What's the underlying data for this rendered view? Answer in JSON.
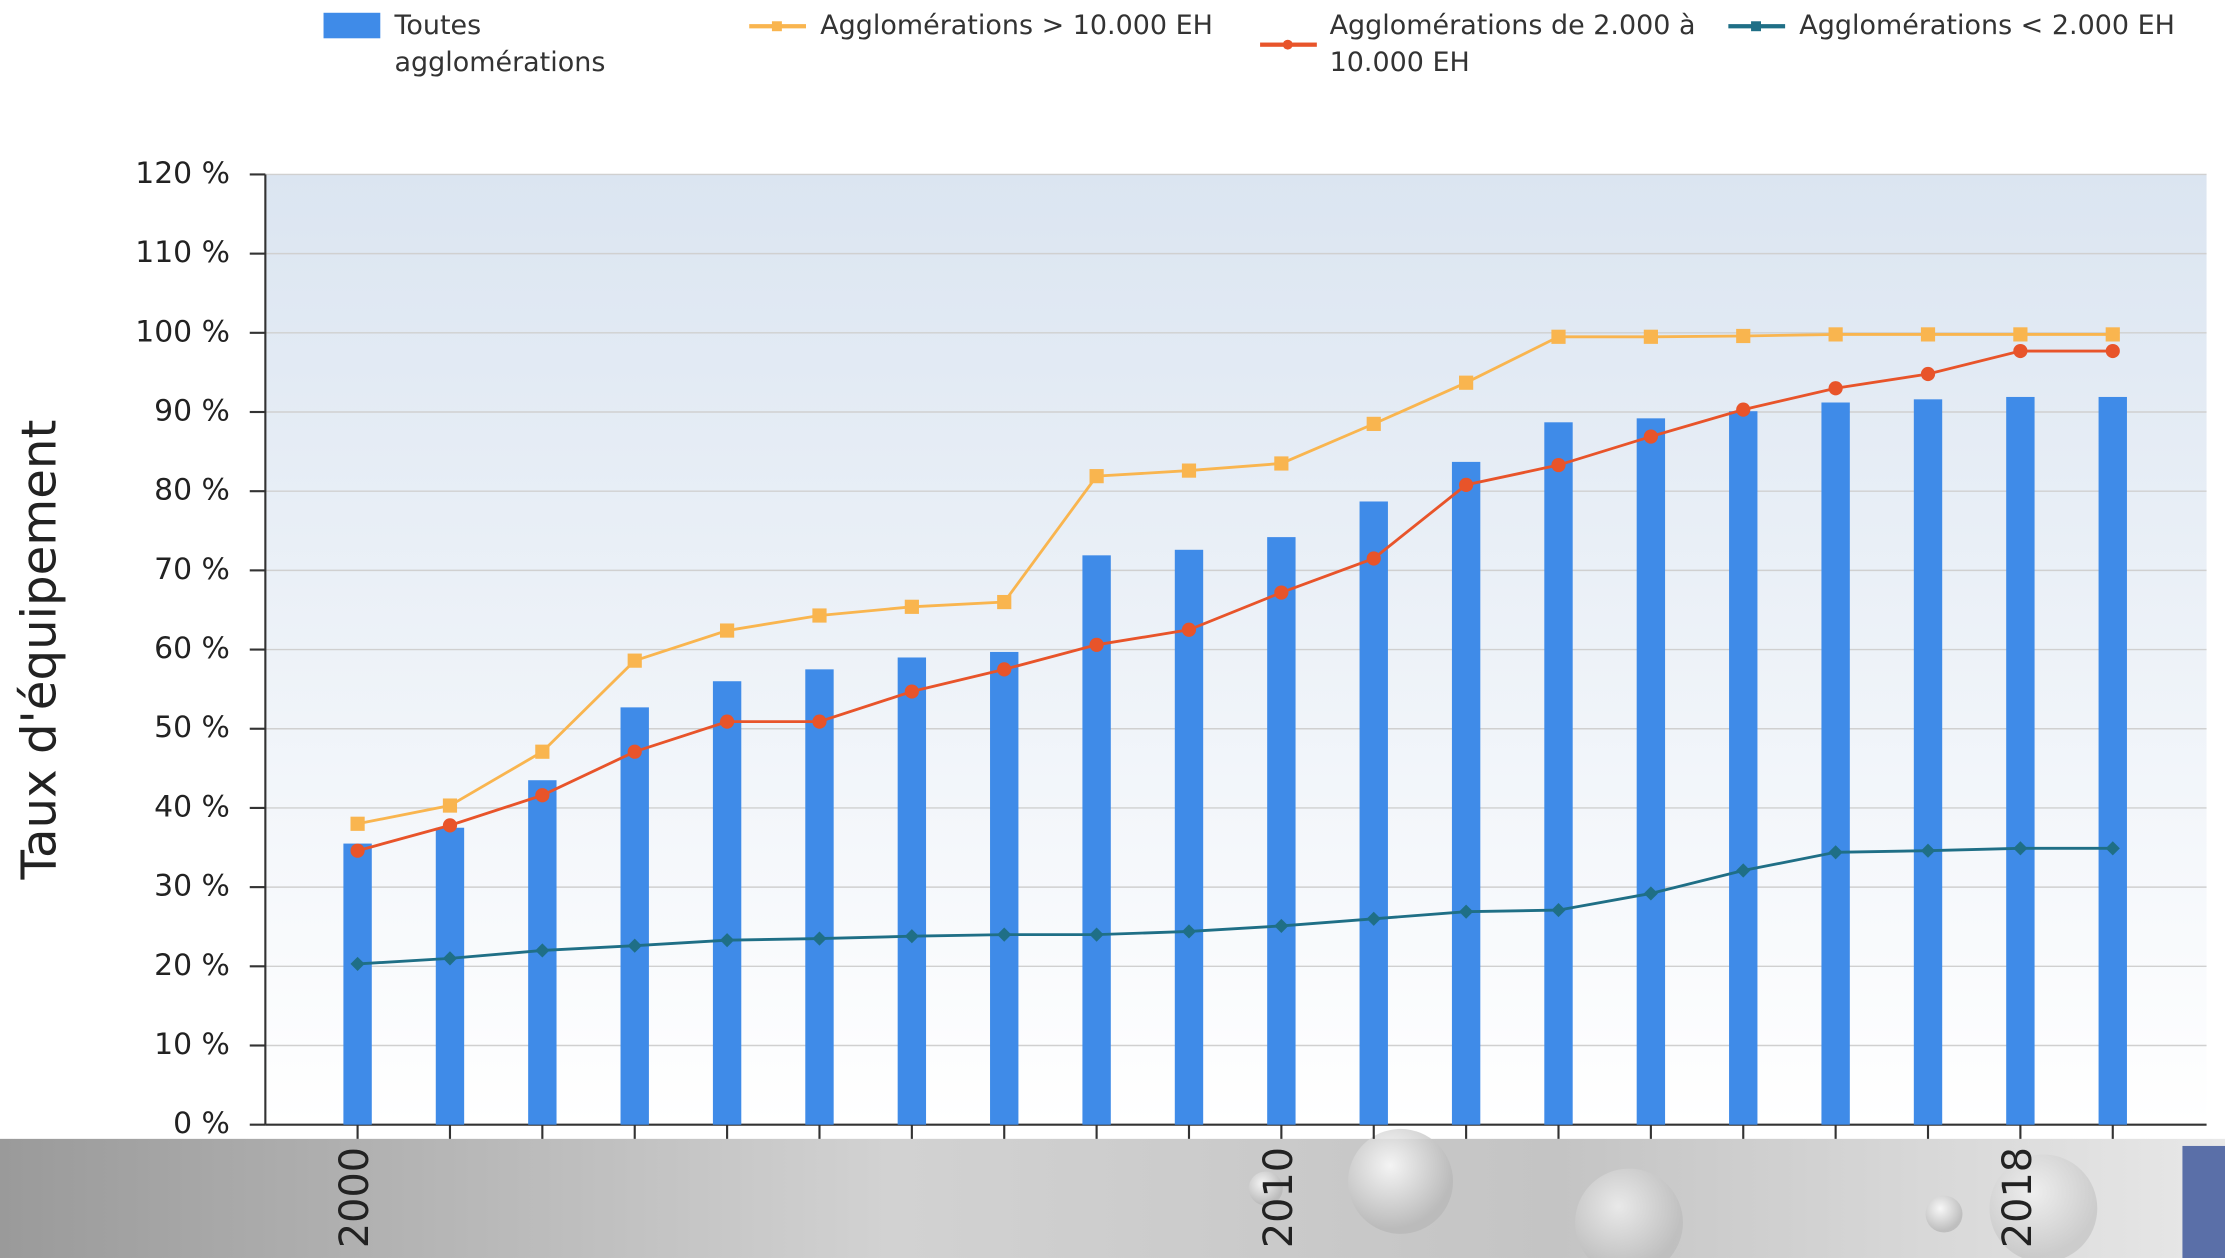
{
  "chart_data": {
    "type": "combo",
    "y_label": "Taux d'équipement",
    "categories": [
      "2000",
      null,
      null,
      null,
      null,
      null,
      null,
      null,
      null,
      null,
      "2010",
      null,
      null,
      null,
      null,
      null,
      null,
      null,
      "2018",
      null
    ],
    "series": [
      {
        "name": "Toutes agglomérations",
        "type": "bar",
        "color": "#3f8be8",
        "values": [
          35.5,
          37.5,
          43.5,
          52.7,
          56,
          57.5,
          59,
          59.7,
          71.9,
          72.6,
          74.2,
          78.7,
          83.7,
          88.7,
          89.2,
          90.1,
          91.2,
          91.6,
          91.9,
          91.9
        ]
      },
      {
        "name": "Agglomérations > 10.000 EH",
        "type": "line",
        "marker": "square",
        "color": "#f9b54f",
        "values": [
          38,
          40.3,
          47.1,
          58.6,
          62.4,
          64.3,
          65.4,
          66,
          81.9,
          82.6,
          83.5,
          88.5,
          93.7,
          99.5,
          99.5,
          99.6,
          99.8,
          99.8,
          99.8,
          99.8
        ]
      },
      {
        "name": "Agglomérations de 2.000 à 10.000 EH",
        "type": "line",
        "marker": "circle",
        "color": "#e8542a",
        "values": [
          34.6,
          37.8,
          41.6,
          47.1,
          50.9,
          50.9,
          54.7,
          57.5,
          60.6,
          62.5,
          67.2,
          71.5,
          80.8,
          83.3,
          86.9,
          90.3,
          93,
          94.8,
          97.7,
          97.7
        ]
      },
      {
        "name": "Agglomérations < 2.000 EH",
        "type": "line",
        "marker": "diamond",
        "color": "#1f6f86",
        "values": [
          20.3,
          21,
          22,
          22.6,
          23.3,
          23.5,
          23.8,
          24,
          24,
          24.4,
          25.1,
          26,
          26.9,
          27.1,
          29.2,
          32.1,
          34.4,
          34.6,
          34.9,
          34.9
        ]
      }
    ],
    "ylim": [
      0,
      120
    ],
    "yticks": [
      {
        "value": 0,
        "label": "0 %"
      },
      {
        "value": 10,
        "label": "10 %"
      },
      {
        "value": 20,
        "label": "20 %"
      },
      {
        "value": 30,
        "label": "30 %"
      },
      {
        "value": 40,
        "label": "40 %"
      },
      {
        "value": 50,
        "label": "50 %"
      },
      {
        "value": 60,
        "label": "60 %"
      },
      {
        "value": 70,
        "label": "70 %"
      },
      {
        "value": 80,
        "label": "80 %"
      },
      {
        "value": 90,
        "label": "90 %"
      },
      {
        "value": 100,
        "label": "100 %"
      },
      {
        "value": 110,
        "label": "110 %"
      },
      {
        "value": 120,
        "label": "120 %"
      }
    ],
    "grid": true
  }
}
